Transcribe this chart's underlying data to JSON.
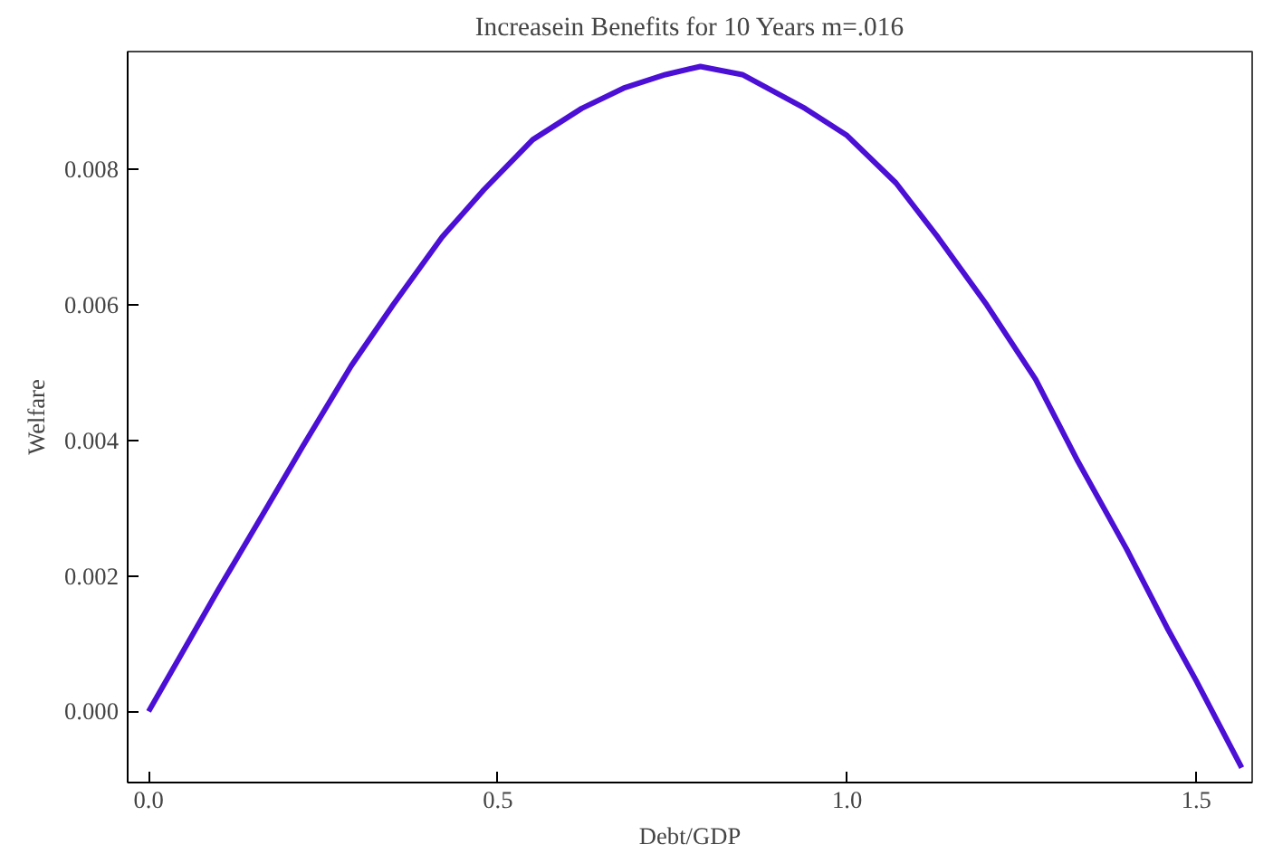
{
  "chart_data": {
    "type": "line",
    "title": "Increasein Benefits for 10 Years m=.016",
    "xlabel": "Debt/GDP",
    "ylabel": "Welfare",
    "x": [
      0,
      0.05,
      0.1,
      0.163,
      0.22,
      0.29,
      0.35,
      0.42,
      0.48,
      0.55,
      0.62,
      0.68,
      0.74,
      0.79,
      0.85,
      0.94,
      1.0,
      1.07,
      1.13,
      1.2,
      1.27,
      1.33,
      1.4,
      1.46,
      1.5,
      1.565
    ],
    "series": [
      {
        "color": "#4b0fd6",
        "values": [
          0,
          0.0009,
          0.0018,
          0.0029,
          0.0039,
          0.0051,
          0.006,
          0.007,
          0.0077,
          0.00844,
          0.0089,
          0.0092,
          0.0094,
          0.00952,
          0.0094,
          0.0089,
          0.0085,
          0.0078,
          0.007,
          0.006,
          0.0049,
          0.0037,
          0.0024,
          0.0012,
          0.00045,
          -0.00083
        ]
      }
    ],
    "xlim": [
      -0.03,
      1.58
    ],
    "ylim": [
      -0.00105,
      0.00974
    ],
    "xticks": [
      {
        "value": 0,
        "label": "0.0"
      },
      0.5,
      {
        "value": 1,
        "label": "1.0"
      },
      1.5
    ],
    "yticks": [
      {
        "value": 0,
        "label": "0.000"
      },
      0.002,
      0.004,
      0.006,
      0.008
    ],
    "grid": false,
    "line_style": "solid"
  }
}
